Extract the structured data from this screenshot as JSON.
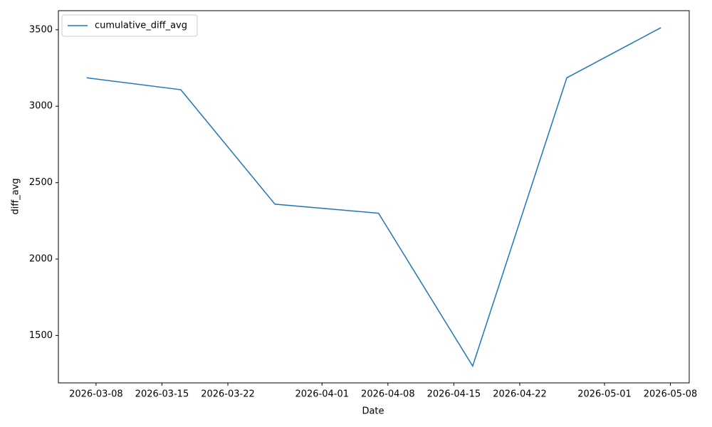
{
  "chart_data": {
    "type": "line",
    "x": [
      "2026-03-07",
      "2026-03-17",
      "2026-03-27",
      "2026-04-07",
      "2026-04-17",
      "2026-04-27",
      "2026-05-07"
    ],
    "series": [
      {
        "name": "cumulative_diff_avg",
        "color": "#1f77b4",
        "values": [
          3186,
          3108,
          2359,
          2300,
          1300,
          3186,
          3514
        ]
      }
    ],
    "xlabel": "Date",
    "ylabel": "diff_avg",
    "xlim": [
      "2026-03-04",
      "2026-05-10"
    ],
    "xticks": [
      "2026-03-08",
      "2026-03-15",
      "2026-03-22",
      "2026-04-01",
      "2026-04-08",
      "2026-04-15",
      "2026-04-22",
      "2026-05-01",
      "2026-05-08"
    ],
    "ylim": [
      1190,
      3625
    ],
    "yticks": [
      1500,
      2000,
      2500,
      3000,
      3500
    ],
    "grid": false,
    "legend": "upper left"
  }
}
